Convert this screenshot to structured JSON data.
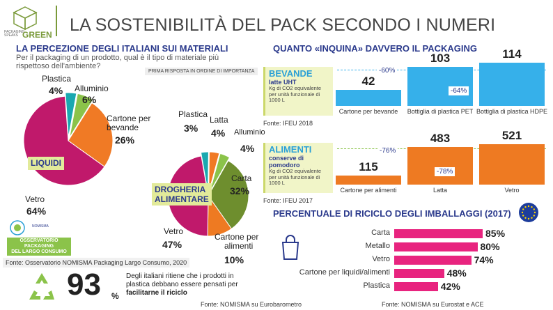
{
  "header": {
    "title": "LA SOSTENIBILITÀ DEL PACK SECONDO I NUMERI",
    "logo_line1": "PACKAGING",
    "logo_line2": "SPEAKS",
    "logo_green": "GREEN"
  },
  "perception": {
    "title": "LA PERCEZIONE DEGLI ITALIANI SUI MATERIALI",
    "question_line1": "Per il packaging di un prodotto, qual è il tipo di materiale più",
    "question_line2": "rispettoso dell'ambiente?",
    "tag": "PRIMA RISPOSTA IN ORDINE DI IMPORTANZA",
    "source": "Fonte: Osservatorio NOMISMA Packaging Largo Consumo, 2020",
    "obs_line1": "OSSERVATORIO",
    "obs_line2": "PACKAGING",
    "obs_line3": "DEL LARGO CONSUMO",
    "obs_small": "NOMISMA"
  },
  "chart_data": [
    {
      "type": "pie",
      "title": "LIQUIDI",
      "categories": [
        "Plastica",
        "Alluminio",
        "Cartone per bevande",
        "Vetro"
      ],
      "values": [
        4,
        6,
        26,
        64
      ],
      "labels": [
        "4%",
        "6%",
        "26%",
        "64%"
      ],
      "alluminio": "Alluminio",
      "cartone_line1": "Cartone per",
      "cartone_line2": "bevande",
      "colors": [
        "#1aa8b0",
        "#8bc34a",
        "#f07a25",
        "#c0196b"
      ]
    },
    {
      "type": "pie",
      "title_line1": "DROGHERIA",
      "title_line2": "ALIMENTARE",
      "categories": [
        "Plastica",
        "Latta",
        "Alluminio",
        "Carta",
        "Cartone per alimenti",
        "Vetro"
      ],
      "values": [
        3,
        4,
        4,
        32,
        10,
        47
      ],
      "labels": [
        "3%",
        "4%",
        "4%",
        "32%",
        "10%",
        "47%"
      ],
      "cartone_line1": "Cartone per",
      "cartone_line2": "alimenti",
      "colors": [
        "#1aa8b0",
        "#f07a25",
        "#8bc34a",
        "#6e8e2e",
        "#ee7a22",
        "#c0196b"
      ]
    },
    {
      "type": "bar",
      "title": "BEVANDE",
      "subtitle": "latte UHT",
      "unit_line1": "Kg di CO2 equivalente",
      "unit_line2": "per unità funzionale di",
      "unit_line3": "1000 L",
      "categories": [
        "Cartone per bevande",
        "Bottiglia di plastica PET",
        "Bottiglia di plastica HDPE"
      ],
      "values": [
        42,
        103,
        114
      ],
      "ylim": [
        0,
        114
      ],
      "color": "#36b0ea",
      "deltas": [
        "-60%",
        "-64%"
      ],
      "source": "Fonte: IFEU 2018"
    },
    {
      "type": "bar",
      "title": "ALIMENTI",
      "subtitle_line1": "conserve di",
      "subtitle_line2": "pomodoro",
      "unit_line1": "Kg di CO2 equivalente",
      "unit_line2": "per unità funzionale di",
      "unit_line3": "1000 L",
      "categories": [
        "Cartone per alimenti",
        "Latta",
        "Vetro"
      ],
      "values": [
        115,
        483,
        521
      ],
      "ylim": [
        0,
        521
      ],
      "color": "#ee7a22",
      "deltas": [
        "-76%",
        "-78%"
      ],
      "source": "Fonte: IFEU 2017"
    },
    {
      "type": "bar",
      "orientation": "horizontal",
      "title": "PERCENTUALE DI RICICLO DEGLI IMBALLAGGI (2017)",
      "categories": [
        "Carta",
        "Metallo",
        "Vetro",
        "Cartone per liquidi/alimenti",
        "Plastica"
      ],
      "values": [
        85,
        80,
        74,
        48,
        42
      ],
      "labels": [
        "85%",
        "80%",
        "74%",
        "48%",
        "42%"
      ],
      "xlim": [
        0,
        85
      ],
      "color": "#e8247f",
      "source": "Fonte: NOMISMA su Eurostat e ACE"
    }
  ],
  "impact": {
    "title": "QUANTO «INQUINA» DAVVERO IL PACKAGING"
  },
  "stat": {
    "value": "93",
    "unit": "%",
    "line1": "Degli italiani ritiene che i prodotti in",
    "line2": "plastica debbano essere pensati per",
    "line3": "facilitarne il riciclo",
    "source": "Fonte: NOMISMA su Eurobarometro"
  },
  "colors": {
    "navy": "#2b3a8c",
    "accent_green": "#cbd86a",
    "magenta": "#e8247f"
  }
}
